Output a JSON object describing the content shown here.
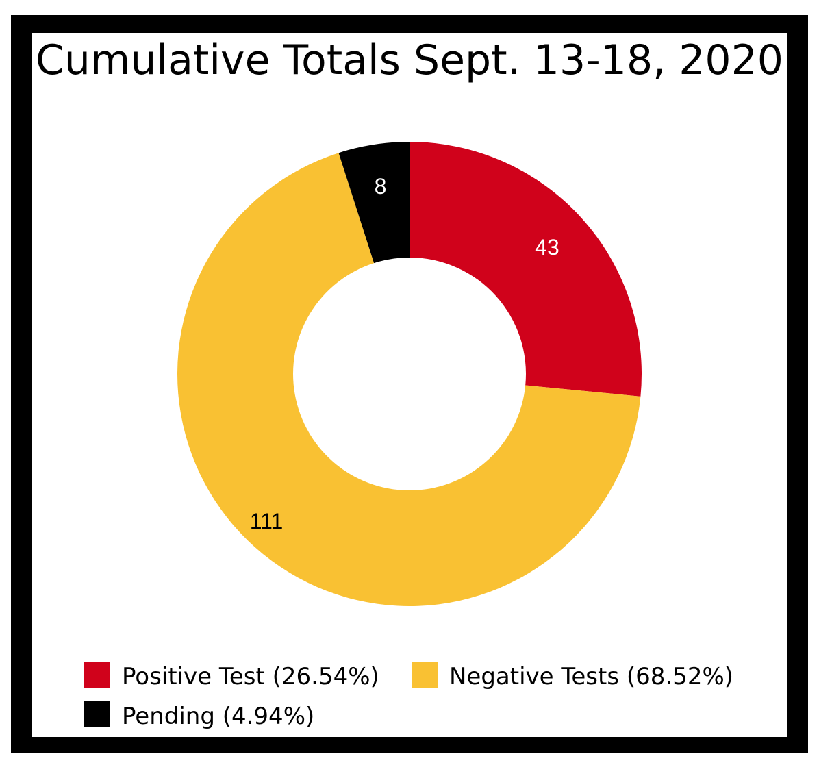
{
  "title": "Cumulative Totals Sept. 13-18, 2020",
  "chart_data": {
    "type": "pie",
    "variant": "donut",
    "title": "Cumulative Totals Sept. 13-18, 2020",
    "categories": [
      "Positive Test",
      "Negative Tests",
      "Pending"
    ],
    "values": [
      43,
      111,
      8
    ],
    "data_labels": [
      "43",
      "111",
      "8"
    ],
    "legend": [
      {
        "label": "Positive Test (26.54%)",
        "color": "#d0021b"
      },
      {
        "label": "Negative Tests (68.52%)",
        "color": "#f9c133"
      },
      {
        "label": "Pending (4.94%)",
        "color": "#000000"
      }
    ],
    "colors": [
      "#d0021b",
      "#f9c133",
      "#000000"
    ],
    "label_colors": [
      "#ffffff",
      "#000000",
      "#ffffff"
    ],
    "legend_position": "bottom",
    "start_angle": "12 o'clock, clockwise"
  }
}
